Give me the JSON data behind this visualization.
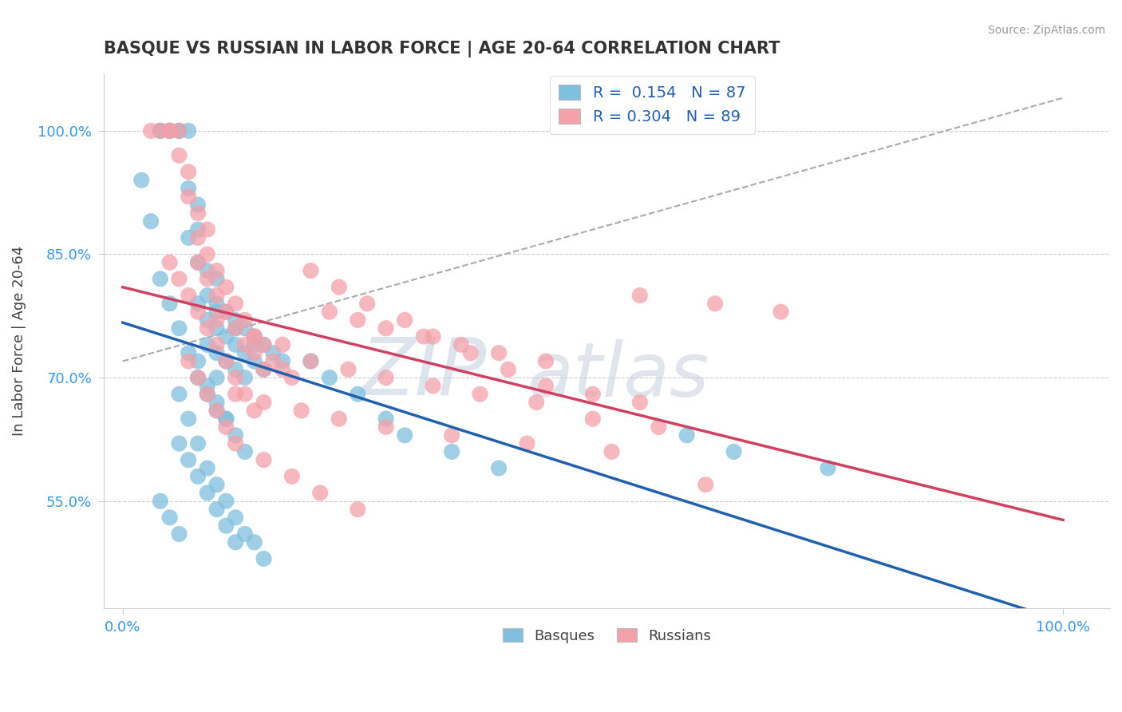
{
  "title": "BASQUE VS RUSSIAN IN LABOR FORCE | AGE 20-64 CORRELATION CHART",
  "source_text": "Source: ZipAtlas.com",
  "ylabel": "In Labor Force | Age 20-64",
  "xlim": [
    -0.02,
    1.05
  ],
  "ylim": [
    0.42,
    1.07
  ],
  "ytick_labels": [
    "55.0%",
    "70.0%",
    "85.0%",
    "100.0%"
  ],
  "ytick_values": [
    0.55,
    0.7,
    0.85,
    1.0
  ],
  "xtick_labels": [
    "0.0%",
    "100.0%"
  ],
  "xtick_values": [
    0.0,
    1.0
  ],
  "basque_R": 0.154,
  "basque_N": 87,
  "russian_R": 0.304,
  "russian_N": 89,
  "blue_color": "#7fbfdf",
  "pink_color": "#f4a0a8",
  "blue_line_color": "#2060b0",
  "pink_line_color": "#d04060",
  "dashed_line_color": "#aaaaaa",
  "legend_color": "#2060b0",
  "watermark_zip_color": "#c8d8e8",
  "watermark_atlas_color": "#c8cce8",
  "basque_x": [
    0.02,
    0.03,
    0.04,
    0.04,
    0.05,
    0.05,
    0.05,
    0.06,
    0.06,
    0.07,
    0.07,
    0.07,
    0.08,
    0.08,
    0.08,
    0.08,
    0.09,
    0.09,
    0.09,
    0.09,
    0.1,
    0.1,
    0.1,
    0.1,
    0.1,
    0.11,
    0.11,
    0.11,
    0.12,
    0.12,
    0.12,
    0.13,
    0.13,
    0.13,
    0.14,
    0.14,
    0.15,
    0.15,
    0.16,
    0.17,
    0.04,
    0.05,
    0.06,
    0.07,
    0.08,
    0.09,
    0.1,
    0.11,
    0.12,
    0.13,
    0.06,
    0.07,
    0.08,
    0.09,
    0.1,
    0.11,
    0.12,
    0.13,
    0.14,
    0.15,
    0.06,
    0.07,
    0.08,
    0.09,
    0.1,
    0.11,
    0.12,
    0.04,
    0.05,
    0.06,
    0.2,
    0.22,
    0.25,
    0.28,
    0.3,
    0.35,
    0.4,
    0.1,
    0.12,
    0.14,
    0.08,
    0.09,
    0.1,
    0.11,
    0.6,
    0.65,
    0.75
  ],
  "basque_y": [
    0.94,
    0.89,
    1.0,
    1.0,
    1.0,
    1.0,
    1.0,
    1.0,
    1.0,
    1.0,
    0.93,
    0.87,
    0.91,
    0.88,
    0.84,
    0.79,
    0.83,
    0.8,
    0.77,
    0.74,
    0.82,
    0.79,
    0.76,
    0.73,
    0.7,
    0.78,
    0.75,
    0.72,
    0.77,
    0.74,
    0.71,
    0.76,
    0.73,
    0.7,
    0.75,
    0.72,
    0.74,
    0.71,
    0.73,
    0.72,
    0.82,
    0.79,
    0.76,
    0.73,
    0.7,
    0.68,
    0.66,
    0.65,
    0.63,
    0.61,
    0.68,
    0.65,
    0.62,
    0.59,
    0.57,
    0.55,
    0.53,
    0.51,
    0.5,
    0.48,
    0.62,
    0.6,
    0.58,
    0.56,
    0.54,
    0.52,
    0.5,
    0.55,
    0.53,
    0.51,
    0.72,
    0.7,
    0.68,
    0.65,
    0.63,
    0.61,
    0.59,
    0.78,
    0.76,
    0.74,
    0.72,
    0.69,
    0.67,
    0.65,
    0.63,
    0.61,
    0.59
  ],
  "russian_x": [
    0.03,
    0.04,
    0.05,
    0.05,
    0.06,
    0.06,
    0.07,
    0.07,
    0.08,
    0.08,
    0.08,
    0.09,
    0.09,
    0.09,
    0.1,
    0.1,
    0.1,
    0.11,
    0.11,
    0.12,
    0.12,
    0.13,
    0.13,
    0.14,
    0.14,
    0.15,
    0.15,
    0.16,
    0.17,
    0.18,
    0.05,
    0.06,
    0.07,
    0.08,
    0.09,
    0.1,
    0.11,
    0.12,
    0.13,
    0.14,
    0.07,
    0.08,
    0.09,
    0.1,
    0.11,
    0.12,
    0.15,
    0.18,
    0.21,
    0.25,
    0.2,
    0.23,
    0.26,
    0.3,
    0.33,
    0.37,
    0.41,
    0.45,
    0.5,
    0.55,
    0.14,
    0.17,
    0.2,
    0.24,
    0.28,
    0.33,
    0.38,
    0.44,
    0.5,
    0.57,
    0.22,
    0.25,
    0.28,
    0.32,
    0.36,
    0.4,
    0.45,
    0.55,
    0.63,
    0.7,
    0.12,
    0.15,
    0.19,
    0.23,
    0.28,
    0.35,
    0.43,
    0.52,
    0.62
  ],
  "russian_y": [
    1.0,
    1.0,
    1.0,
    1.0,
    1.0,
    0.97,
    0.95,
    0.92,
    0.9,
    0.87,
    0.84,
    0.88,
    0.85,
    0.82,
    0.83,
    0.8,
    0.77,
    0.81,
    0.78,
    0.79,
    0.76,
    0.77,
    0.74,
    0.75,
    0.73,
    0.74,
    0.71,
    0.72,
    0.71,
    0.7,
    0.84,
    0.82,
    0.8,
    0.78,
    0.76,
    0.74,
    0.72,
    0.7,
    0.68,
    0.66,
    0.72,
    0.7,
    0.68,
    0.66,
    0.64,
    0.62,
    0.6,
    0.58,
    0.56,
    0.54,
    0.83,
    0.81,
    0.79,
    0.77,
    0.75,
    0.73,
    0.71,
    0.69,
    0.68,
    0.67,
    0.75,
    0.74,
    0.72,
    0.71,
    0.7,
    0.69,
    0.68,
    0.67,
    0.65,
    0.64,
    0.78,
    0.77,
    0.76,
    0.75,
    0.74,
    0.73,
    0.72,
    0.8,
    0.79,
    0.78,
    0.68,
    0.67,
    0.66,
    0.65,
    0.64,
    0.63,
    0.62,
    0.61,
    0.57
  ]
}
